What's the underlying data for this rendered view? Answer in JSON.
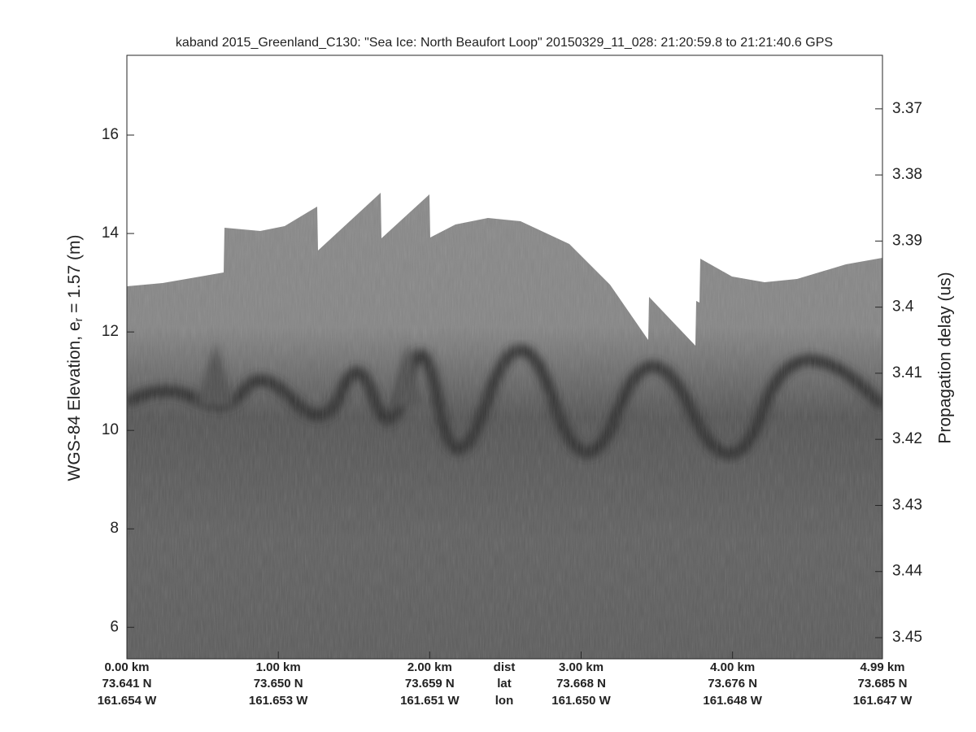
{
  "chart_data": {
    "type": "echogram",
    "title": "kaband 2015_Greenland_C130: \"Sea Ice: North Beaufort Loop\"  20150329_11_028: 21:20:59.8 to 21:21:40.6 GPS",
    "ylabel": {
      "main": "WGS-84 Elevation, e",
      "sub": "r",
      "tail": " = 1.57 (m)"
    },
    "y2label": "Propagation delay (us)",
    "xlim": [
      0,
      4.99
    ],
    "xticks": [
      {
        "value": 0,
        "label": "0.00 km"
      },
      {
        "value": 1,
        "label": "1.00 km"
      },
      {
        "value": 2,
        "label": "2.00 km"
      },
      {
        "value": 3,
        "label": "3.00 km"
      },
      {
        "value": 4,
        "label": "4.00 km"
      },
      {
        "value": 4.99,
        "label": "4.99 km"
      }
    ],
    "xtick_lat": [
      "73.641 N",
      "73.650 N",
      "73.659 N",
      "73.668 N",
      "73.676 N",
      "73.685 N"
    ],
    "xtick_lon": [
      "161.654 W",
      "161.653 W",
      "161.651 W",
      "161.650 W",
      "161.648 W",
      "161.647 W"
    ],
    "row_labels": [
      "dist",
      "lat",
      "lon"
    ],
    "ylim": [
      5.36,
      17.62
    ],
    "yticks": [
      6,
      8,
      10,
      12,
      14,
      16
    ],
    "y2lim": [
      3.4532,
      3.3619
    ],
    "y2ticks": [
      3.37,
      3.38,
      3.39,
      3.4,
      3.41,
      3.42,
      3.43,
      3.44,
      3.45
    ]
  }
}
